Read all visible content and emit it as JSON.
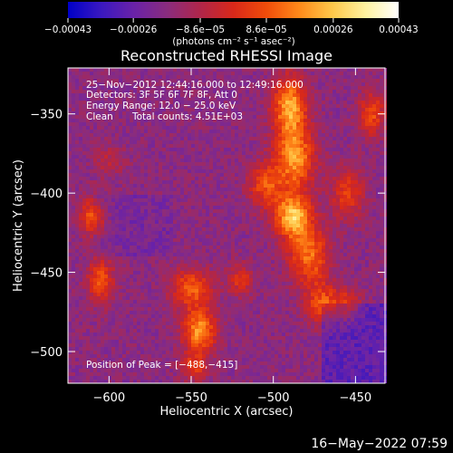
{
  "chart_data": {
    "type": "heatmap",
    "title": "Reconstructed RHESSI Image",
    "xlabel": "Heliocentric X (arcsec)",
    "ylabel": "Heliocentric Y (arcsec)",
    "xlim": [
      -625,
      -432
    ],
    "ylim": [
      -520,
      -321
    ],
    "x_ticks": [
      -600,
      -550,
      -500,
      -450
    ],
    "x_tick_labels": [
      "−600",
      "−550",
      "−500",
      "−450"
    ],
    "y_ticks": [
      -350,
      -400,
      -450,
      -500
    ],
    "y_tick_labels": [
      "−350",
      "−400",
      "−450",
      "−500"
    ],
    "colorbar": {
      "min": -0.00043,
      "max": 0.00043,
      "ticks": [
        -0.00043,
        -0.00026,
        -8.6e-05,
        8.6e-05,
        0.00026,
        0.00043
      ],
      "tick_labels": [
        "−0.00043",
        "−0.00026",
        "−8.6e−05",
        "8.6e−05",
        "0.00026",
        "0.00043"
      ],
      "unit_label": "(photons cm⁻² s⁻¹ asec⁻²)",
      "colors": [
        "#0000c8",
        "#3a18c0",
        "#6a22a8",
        "#8a2c7e",
        "#b0264a",
        "#d8281a",
        "#f04c0a",
        "#ff8a1a",
        "#ffc84a",
        "#fff2a0",
        "#ffffff"
      ]
    },
    "annotations": {
      "time": "25−Nov−2012 12:44:16.000 to 12:49:16.000",
      "detectors": "Detectors: 3F 5F 6F 7F 8F, Att 0",
      "energy": "Energy Range: 12.0 − 25.0 keV",
      "method": "Clean",
      "counts": "Total counts: 4.51E+03",
      "peak": "Position of Peak = [−488,−415]"
    },
    "peak": {
      "x": -488,
      "y": -415
    }
  },
  "footer": {
    "timestamp": "16−May−2022 07:59"
  }
}
